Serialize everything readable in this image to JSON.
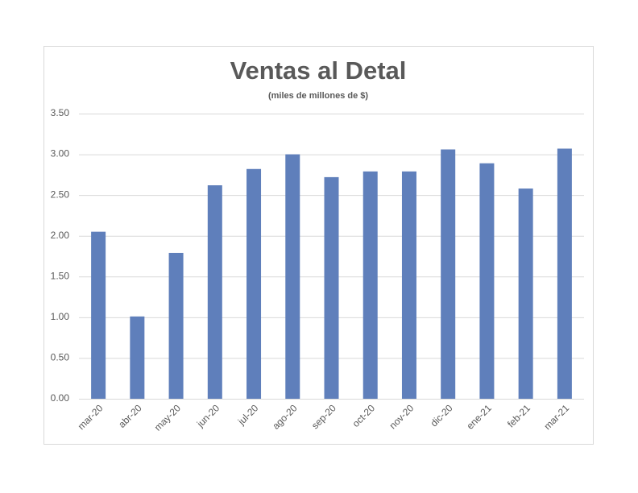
{
  "chart_data": {
    "type": "bar",
    "title": "Ventas al Detal",
    "subtitle": "(miles de millones de $)",
    "categories": [
      "mar-20",
      "abr-20",
      "may-20",
      "jun-20",
      "jul-20",
      "ago-20",
      "sep-20",
      "oct-20",
      "nov-20",
      "dic-20",
      "ene-21",
      "feb-21",
      "mar-21"
    ],
    "values": [
      2.05,
      1.01,
      1.79,
      2.62,
      2.82,
      3.0,
      2.72,
      2.79,
      2.79,
      3.06,
      2.89,
      2.58,
      3.07
    ],
    "color": "#5f7fbb",
    "ylim": [
      0,
      3.5
    ],
    "yticks": [
      {
        "value": 0,
        "label": "0.00"
      },
      {
        "value": 0.5,
        "label": "0.50"
      },
      {
        "value": 1,
        "label": "1.00"
      },
      {
        "value": 1.5,
        "label": "1.50"
      },
      {
        "value": 2,
        "label": "2.00"
      },
      {
        "value": 2.5,
        "label": "2.50"
      },
      {
        "value": 3,
        "label": "3.00"
      },
      {
        "value": 3.5,
        "label": "3.50"
      }
    ],
    "grid": true
  }
}
